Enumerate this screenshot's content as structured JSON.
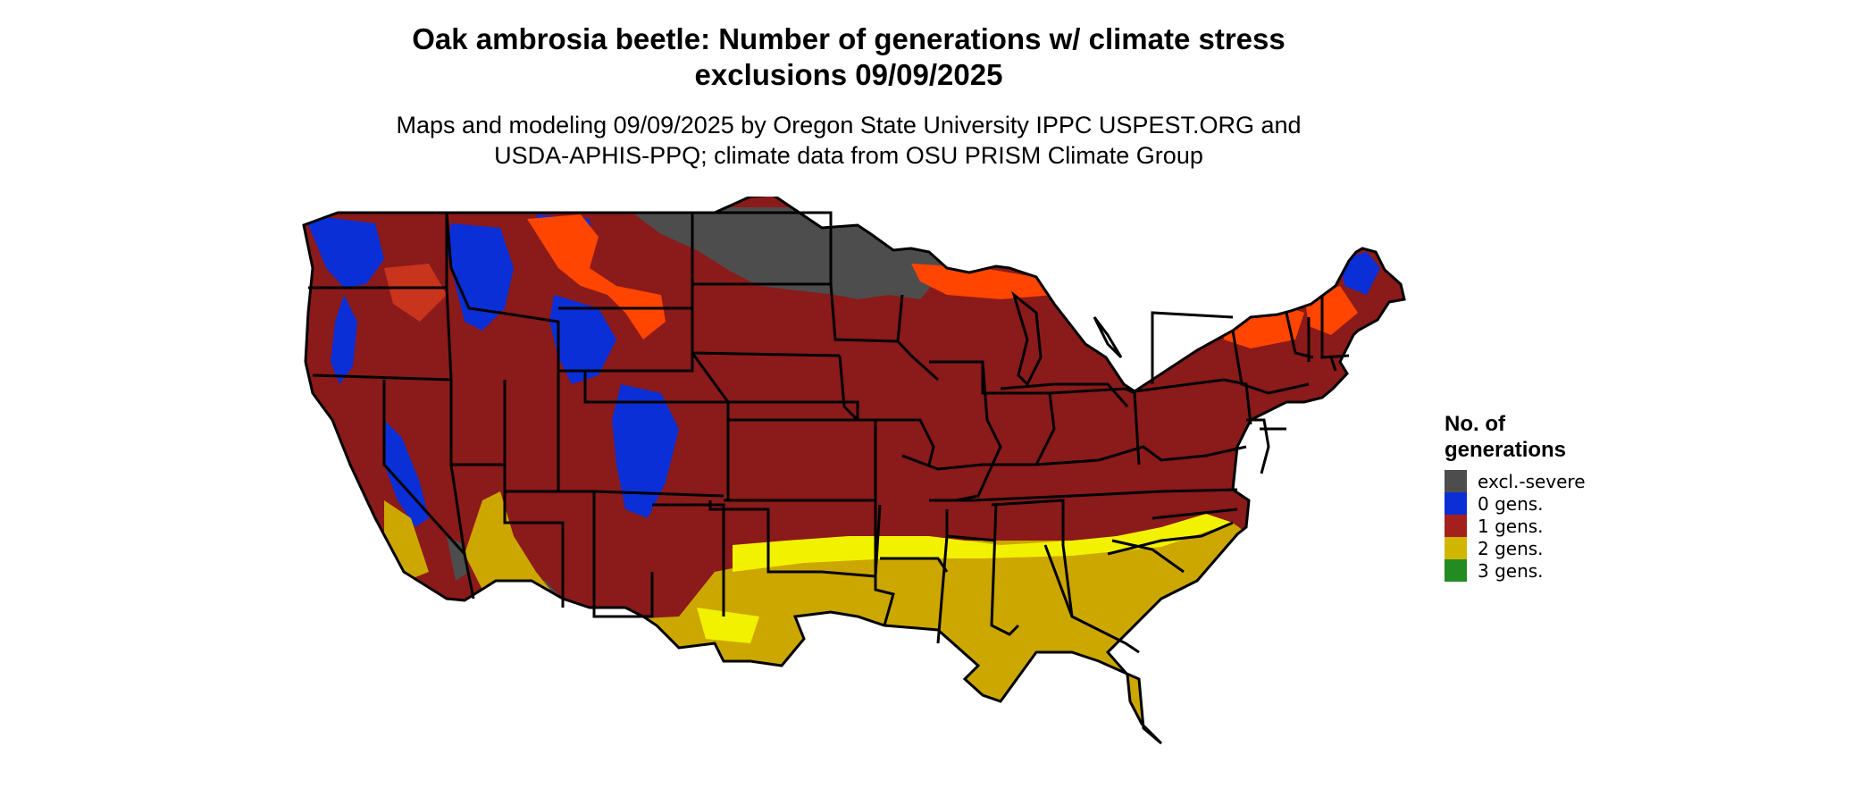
{
  "title_line1": "Oak ambrosia beetle: Number of generations w/ climate stress",
  "title_line2": "exclusions 09/09/2025",
  "subtitle_line1": "Maps and modeling 09/09/2025 by Oregon State University IPPC USPEST.ORG and",
  "subtitle_line2": "USDA-APHIS-PPQ; climate data from OSU PRISM Climate Group",
  "legend": {
    "title_line1": "No. of",
    "title_line2": "generations",
    "items": [
      {
        "label": "excl.-severe",
        "color": "#4d4d4d"
      },
      {
        "label": "0 gens.",
        "color": "#0a2fd6"
      },
      {
        "label": "1 gens.",
        "color": "#a3201d"
      },
      {
        "label": "2 gens.",
        "color": "#d1b600"
      },
      {
        "label": "3 gens.",
        "color": "#228b22"
      }
    ]
  },
  "colors": {
    "base": "#8b1a1a",
    "orange": "#ff4500",
    "yellow": "#f2f200",
    "green": "#2fae2f",
    "border": "#000000"
  }
}
